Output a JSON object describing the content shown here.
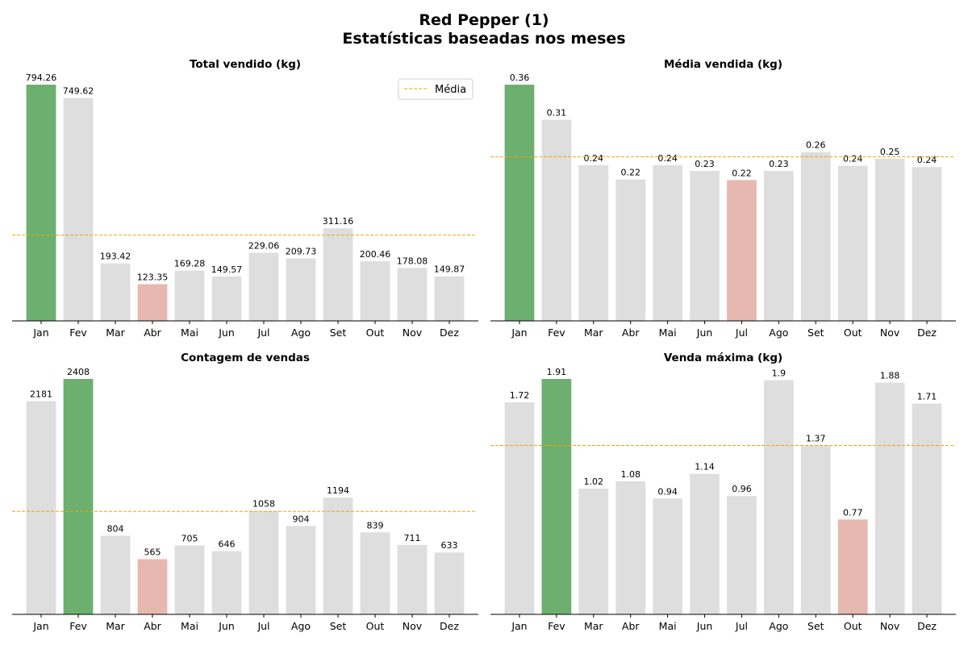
{
  "figure": {
    "title_line1": "Red Pepper (1)",
    "title_line2": "Estatísticas baseadas nos meses",
    "colors": {
      "max": "#6daf6f",
      "min": "#e6b8b0",
      "default": "#dedede",
      "mean_line": "#f0a500"
    }
  },
  "chart_data": [
    {
      "type": "bar",
      "title": "Total vendido (kg)",
      "categories": [
        "Jan",
        "Fev",
        "Mar",
        "Abr",
        "Mai",
        "Jun",
        "Jul",
        "Ago",
        "Set",
        "Out",
        "Nov",
        "Dez"
      ],
      "values": [
        794.26,
        749.62,
        193.42,
        123.35,
        169.28,
        149.57,
        229.06,
        209.73,
        311.16,
        200.46,
        178.08,
        149.87
      ],
      "labels": [
        "794.26",
        "749.62",
        "193.42",
        "123.35",
        "169.28",
        "149.57",
        "229.06",
        "209.73",
        "311.16",
        "200.46",
        "178.08",
        "149.87"
      ],
      "mean": 288.2,
      "highlight_max": 0,
      "highlight_min": 3,
      "legend": {
        "label": "Média",
        "position": "top-right"
      }
    },
    {
      "type": "bar",
      "title": "Média vendida (kg)",
      "categories": [
        "Jan",
        "Fev",
        "Mar",
        "Abr",
        "Mai",
        "Jun",
        "Jul",
        "Ago",
        "Set",
        "Out",
        "Nov",
        "Dez"
      ],
      "values": [
        0.364,
        0.31,
        0.24,
        0.218,
        0.24,
        0.231,
        0.217,
        0.231,
        0.26,
        0.239,
        0.25,
        0.237
      ],
      "labels": [
        "0.36",
        "0.31",
        "0.24",
        "0.22",
        "0.24",
        "0.23",
        "0.22",
        "0.23",
        "0.26",
        "0.24",
        "0.25",
        "0.24"
      ],
      "mean": 0.253,
      "highlight_max": 0,
      "highlight_min": 6
    },
    {
      "type": "bar",
      "title": "Contagem de vendas",
      "categories": [
        "Jan",
        "Fev",
        "Mar",
        "Abr",
        "Mai",
        "Jun",
        "Jul",
        "Ago",
        "Set",
        "Out",
        "Nov",
        "Dez"
      ],
      "values": [
        2181,
        2408,
        804,
        565,
        705,
        646,
        1058,
        904,
        1194,
        839,
        711,
        633
      ],
      "labels": [
        "2181",
        "2408",
        "804",
        "565",
        "705",
        "646",
        "1058",
        "904",
        "1194",
        "839",
        "711",
        "633"
      ],
      "mean": 1054,
      "highlight_max": 1,
      "highlight_min": 3
    },
    {
      "type": "bar",
      "title": "Venda máxima (kg)",
      "categories": [
        "Jan",
        "Fev",
        "Mar",
        "Abr",
        "Mai",
        "Jun",
        "Jul",
        "Ago",
        "Set",
        "Out",
        "Nov",
        "Dez"
      ],
      "values": [
        1.72,
        1.91,
        1.02,
        1.08,
        0.94,
        1.14,
        0.96,
        1.9,
        1.37,
        0.77,
        1.88,
        1.71
      ],
      "labels": [
        "1.72",
        "1.91",
        "1.02",
        "1.08",
        "0.94",
        "1.14",
        "0.96",
        "1.9",
        "1.37",
        "0.77",
        "1.88",
        "1.71"
      ],
      "mean": 1.37,
      "highlight_max": 1,
      "highlight_min": 9
    }
  ]
}
